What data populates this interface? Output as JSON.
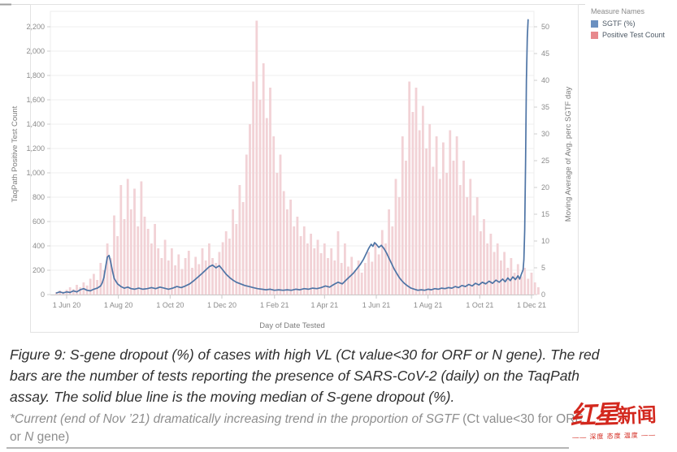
{
  "legend": {
    "title": "Measure Names",
    "items": [
      {
        "label": "SGTF (%)",
        "color": "#6b90c0"
      },
      {
        "label": "Positive Test Count",
        "color": "#e7898d"
      }
    ]
  },
  "caption": {
    "lines": [
      "Figure 9: S-gene dropout (%) of cases with high VL (Ct value<30 for ORF or N gene). The red",
      "bars are the number of tests reporting the presence of SARS-CoV-2 (daily) on the TaqPath",
      "assay. The solid blue line is the moving median of S-gene dropout (%)."
    ]
  },
  "footnote": {
    "line1_italic": "*Current (end of Nov ’21) dramatically increasing trend in the proportion of SGTF ",
    "line1_plain": "(Ct value<30 for ORF,",
    "line2_plain_a": "or ",
    "line2_italic": "N",
    "line2_plain_b": " gene)"
  },
  "watermark": {
    "brand_part1": "红星",
    "brand_part2": "新闻",
    "tagline": "—— 深度 态度 温度 ——",
    "color": "#d3281e"
  },
  "chart_data": {
    "type": "combo",
    "title": "",
    "xlabel": "Day of Date Tested",
    "x_ticks": [
      "1 Jun 20",
      "1 Aug 20",
      "1 Oct 20",
      "1 Dec 20",
      "1 Feb 21",
      "1 Apr 21",
      "1 Jun 21",
      "1 Aug 21",
      "1 Oct 21",
      "1 Dec 21"
    ],
    "x_tick_days": [
      0,
      61,
      122,
      183,
      245,
      304,
      365,
      426,
      487,
      548
    ],
    "x_day0_date": "1 Jun 20",
    "grid": true,
    "legend_position": "top-right",
    "left_axis": {
      "label": "TaqPath Positive Test Count",
      "range": [
        0,
        2200
      ],
      "tick_step": 200,
      "ticks": [
        "0",
        "200",
        "400",
        "600",
        "800",
        "1,000",
        "1,200",
        "1,400",
        "1,600",
        "1,800",
        "2,000",
        "2,200"
      ]
    },
    "right_axis": {
      "label": "Moving Average of Avg. perc SGTF day",
      "range": [
        0,
        50
      ],
      "tick_step": 5,
      "ticks": [
        "0",
        "5",
        "10",
        "15",
        "20",
        "25",
        "30",
        "35",
        "40",
        "45",
        "50"
      ]
    },
    "series": [
      {
        "name": "Positive Test Count",
        "type": "bar",
        "axis": "left",
        "color": "#f2d2d6",
        "x_days_start": -12,
        "x_days_step": 4,
        "values": [
          20,
          35,
          25,
          40,
          60,
          45,
          80,
          60,
          100,
          75,
          130,
          170,
          120,
          260,
          200,
          420,
          300,
          650,
          480,
          900,
          620,
          950,
          700,
          870,
          560,
          930,
          640,
          540,
          420,
          580,
          380,
          300,
          450,
          280,
          380,
          240,
          330,
          210,
          300,
          360,
          220,
          310,
          250,
          380,
          280,
          420,
          300,
          260,
          350,
          430,
          520,
          460,
          700,
          580,
          900,
          760,
          1150,
          1400,
          1750,
          2250,
          1600,
          1900,
          1450,
          1700,
          1300,
          1000,
          1150,
          850,
          700,
          780,
          560,
          640,
          480,
          560,
          420,
          500,
          380,
          450,
          340,
          420,
          300,
          380,
          280,
          520,
          260,
          420,
          230,
          310,
          200,
          280,
          180,
          260,
          350,
          270,
          420,
          330,
          530,
          420,
          700,
          560,
          950,
          800,
          1300,
          1100,
          1750,
          1500,
          1700,
          1350,
          1550,
          1200,
          1400,
          1050,
          1300,
          950,
          1250,
          1000,
          1350,
          1100,
          1300,
          900,
          1100,
          800,
          950,
          650,
          800,
          520,
          620,
          420,
          500,
          350,
          420,
          280,
          350,
          220,
          300,
          180,
          250,
          150,
          220,
          130,
          180,
          100,
          60
        ]
      },
      {
        "name": "SGTF (%)",
        "type": "line",
        "axis": "right",
        "color": "#4e74a5",
        "points": [
          [
            -12,
            0.3
          ],
          [
            -8,
            0.5
          ],
          [
            -4,
            0.3
          ],
          [
            0,
            0.5
          ],
          [
            4,
            0.4
          ],
          [
            8,
            0.7
          ],
          [
            12,
            0.5
          ],
          [
            16,
            0.9
          ],
          [
            20,
            1.1
          ],
          [
            24,
            0.8
          ],
          [
            28,
            0.7
          ],
          [
            32,
            1.0
          ],
          [
            36,
            1.2
          ],
          [
            40,
            1.6
          ],
          [
            42,
            2.2
          ],
          [
            44,
            3.2
          ],
          [
            46,
            5.2
          ],
          [
            48,
            7.0
          ],
          [
            50,
            7.3
          ],
          [
            52,
            6.0
          ],
          [
            54,
            4.4
          ],
          [
            56,
            3.0
          ],
          [
            60,
            2.0
          ],
          [
            64,
            1.5
          ],
          [
            68,
            1.2
          ],
          [
            72,
            1.4
          ],
          [
            76,
            1.1
          ],
          [
            80,
            1.0
          ],
          [
            85,
            1.2
          ],
          [
            90,
            1.0
          ],
          [
            95,
            1.1
          ],
          [
            100,
            1.3
          ],
          [
            105,
            1.1
          ],
          [
            110,
            1.4
          ],
          [
            115,
            1.2
          ],
          [
            120,
            1.0
          ],
          [
            125,
            1.2
          ],
          [
            130,
            1.5
          ],
          [
            135,
            1.3
          ],
          [
            140,
            1.6
          ],
          [
            145,
            2.0
          ],
          [
            150,
            2.6
          ],
          [
            155,
            3.3
          ],
          [
            160,
            4.0
          ],
          [
            164,
            4.6
          ],
          [
            168,
            5.2
          ],
          [
            172,
            5.5
          ],
          [
            176,
            5.0
          ],
          [
            180,
            5.4
          ],
          [
            184,
            4.6
          ],
          [
            188,
            3.8
          ],
          [
            192,
            3.2
          ],
          [
            196,
            2.7
          ],
          [
            200,
            2.3
          ],
          [
            205,
            2.0
          ],
          [
            210,
            1.7
          ],
          [
            215,
            1.5
          ],
          [
            220,
            1.3
          ],
          [
            225,
            1.1
          ],
          [
            230,
            1.0
          ],
          [
            235,
            0.9
          ],
          [
            240,
            1.0
          ],
          [
            245,
            0.8
          ],
          [
            250,
            0.9
          ],
          [
            255,
            0.8
          ],
          [
            260,
            0.9
          ],
          [
            265,
            0.8
          ],
          [
            270,
            1.0
          ],
          [
            275,
            0.9
          ],
          [
            280,
            1.1
          ],
          [
            285,
            1.0
          ],
          [
            290,
            1.2
          ],
          [
            295,
            1.1
          ],
          [
            300,
            1.3
          ],
          [
            305,
            1.6
          ],
          [
            310,
            1.4
          ],
          [
            315,
            1.9
          ],
          [
            320,
            2.3
          ],
          [
            325,
            2.0
          ],
          [
            330,
            2.8
          ],
          [
            334,
            3.4
          ],
          [
            338,
            4.0
          ],
          [
            342,
            4.8
          ],
          [
            346,
            5.6
          ],
          [
            350,
            6.6
          ],
          [
            353,
            7.6
          ],
          [
            356,
            8.6
          ],
          [
            359,
            9.4
          ],
          [
            361,
            9.0
          ],
          [
            363,
            9.7
          ],
          [
            365,
            9.4
          ],
          [
            368,
            8.8
          ],
          [
            371,
            9.2
          ],
          [
            374,
            8.6
          ],
          [
            377,
            7.8
          ],
          [
            380,
            6.8
          ],
          [
            383,
            5.8
          ],
          [
            386,
            4.8
          ],
          [
            389,
            4.0
          ],
          [
            392,
            3.2
          ],
          [
            395,
            2.6
          ],
          [
            398,
            2.1
          ],
          [
            402,
            1.6
          ],
          [
            406,
            1.2
          ],
          [
            410,
            1.0
          ],
          [
            414,
            0.8
          ],
          [
            418,
            0.9
          ],
          [
            422,
            0.8
          ],
          [
            426,
            1.0
          ],
          [
            430,
            0.9
          ],
          [
            434,
            1.1
          ],
          [
            438,
            1.0
          ],
          [
            442,
            1.2
          ],
          [
            446,
            1.1
          ],
          [
            450,
            1.3
          ],
          [
            454,
            1.2
          ],
          [
            458,
            1.5
          ],
          [
            462,
            1.3
          ],
          [
            466,
            1.7
          ],
          [
            470,
            1.5
          ],
          [
            474,
            1.9
          ],
          [
            478,
            1.6
          ],
          [
            482,
            2.1
          ],
          [
            486,
            1.8
          ],
          [
            490,
            2.3
          ],
          [
            494,
            2.0
          ],
          [
            498,
            2.5
          ],
          [
            502,
            2.1
          ],
          [
            506,
            2.7
          ],
          [
            510,
            2.3
          ],
          [
            514,
            2.9
          ],
          [
            517,
            2.4
          ],
          [
            520,
            3.1
          ],
          [
            523,
            2.6
          ],
          [
            526,
            3.3
          ],
          [
            529,
            2.8
          ],
          [
            532,
            3.5
          ],
          [
            534,
            2.9
          ],
          [
            536,
            3.8
          ],
          [
            538,
            4.6
          ],
          [
            539,
            6.5
          ],
          [
            540,
            12
          ],
          [
            541,
            25
          ],
          [
            542,
            40
          ],
          [
            543,
            48
          ],
          [
            544,
            51.3
          ]
        ]
      }
    ],
    "annotation": "Blue line spikes to ~51% at end of Nov 2021; largest red-bar wave peaks ~2,250 in early Jan 2021, summer 2021 wave peaks ~1,750 in mid Jul 2021, first wave peaks ~950 in Aug 2020"
  }
}
